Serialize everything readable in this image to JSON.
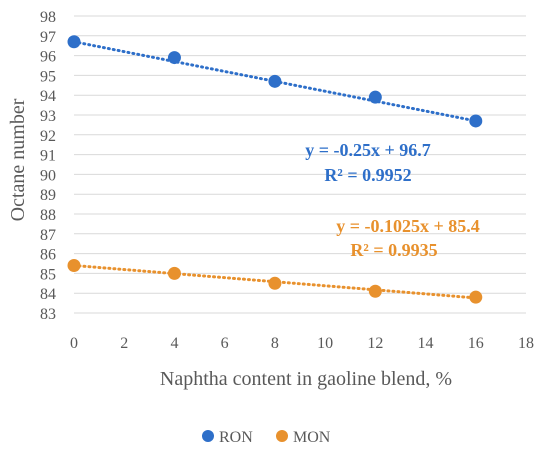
{
  "chart_data": {
    "type": "scatter",
    "xlabel": "Naphtha content in gaoline blend, %",
    "ylabel": "Octane number",
    "xlim": [
      0,
      18
    ],
    "ylim": [
      83,
      98
    ],
    "xticks": [
      0,
      2,
      4,
      6,
      8,
      10,
      12,
      14,
      16,
      18
    ],
    "yticks": [
      83,
      84,
      85,
      86,
      87,
      88,
      89,
      90,
      91,
      92,
      93,
      94,
      95,
      96,
      97,
      98
    ],
    "grid": "horizontal",
    "legend_position": "bottom",
    "series": [
      {
        "name": "RON",
        "color": "#2E6FC9",
        "x": [
          0,
          4,
          8,
          12,
          16
        ],
        "y": [
          96.7,
          95.9,
          94.7,
          93.9,
          92.7
        ],
        "trendline": {
          "slope": -0.25,
          "intercept": 96.7,
          "style": "dotted"
        },
        "equation": "y = -0.25x + 96.7",
        "r2": "R² = 0.9952"
      },
      {
        "name": "MON",
        "color": "#E8912D",
        "x": [
          0,
          4,
          8,
          12,
          16
        ],
        "y": [
          85.4,
          85.0,
          84.5,
          84.1,
          83.8
        ],
        "trendline": {
          "slope": -0.1025,
          "intercept": 85.4,
          "style": "dotted"
        },
        "equation": "y = -0.1025x + 85.4",
        "r2": "R² = 0.9935"
      }
    ]
  }
}
